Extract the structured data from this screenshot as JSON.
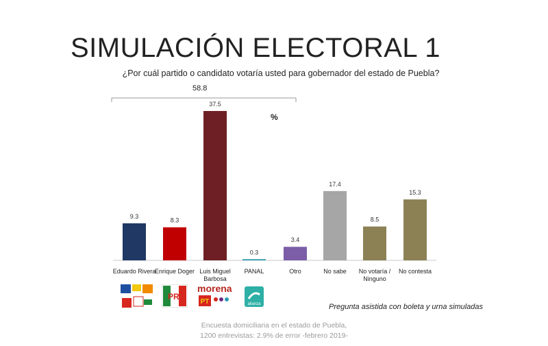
{
  "title": "SIMULACIÓN ELECTORAL 1",
  "subtitle": "¿Por cuál partido o candidato votaría usted para gobernador del estado de Puebla?",
  "group_total_label": "58.8",
  "unit": "%",
  "note": "Pregunta asistida con boleta y urna simuladas",
  "footer": {
    "line1": "Encuesta domiciliaria en el estado de Puebla,",
    "line2": "1200 entrevistas: 2.9% de error -febrero 2019-"
  },
  "logos": {
    "morena": "morena",
    "pri": "PRI",
    "pt": "PT",
    "panal": "alianza"
  },
  "chart_data": {
    "type": "bar",
    "categories": [
      "Eduardo Rivera",
      "Enrique Doger",
      "Luis Miguel Barbosa",
      "PANAL",
      "Otro",
      "No sabe",
      "No votaría / Ninguno",
      "No contesta"
    ],
    "category_lines": [
      [
        "Eduardo Rivera"
      ],
      [
        "Enrique Doger"
      ],
      [
        "Luis Miguel",
        "Barbosa"
      ],
      [
        "PANAL"
      ],
      [
        "Otro"
      ],
      [
        "No sabe"
      ],
      [
        "No votaría /",
        "Ninguno"
      ],
      [
        "No contesta"
      ]
    ],
    "values": [
      9.3,
      8.3,
      37.5,
      0.3,
      3.4,
      17.4,
      8.5,
      15.3
    ],
    "value_labels": [
      "9.3",
      "8.3",
      "37.5",
      "0.3",
      "3.4",
      "17.4",
      "8.5",
      "15.3"
    ],
    "colors": [
      "#1f3864",
      "#c00000",
      "#6e1f25",
      "#2e9bb0",
      "#7b5ea7",
      "#a6a6a6",
      "#8b8155",
      "#8b8155"
    ],
    "ylim": [
      0,
      40
    ],
    "xlabel": "",
    "ylabel": "",
    "grid": false,
    "legend": "none"
  }
}
